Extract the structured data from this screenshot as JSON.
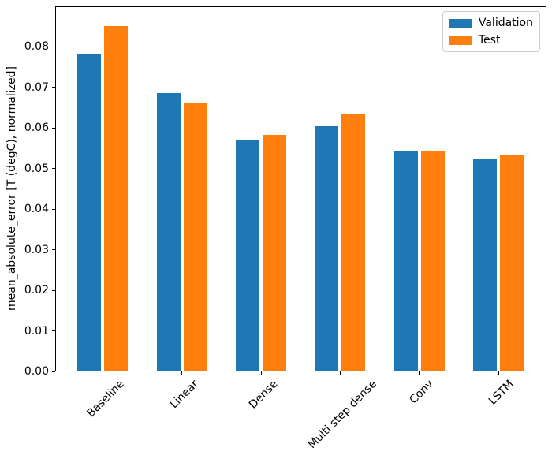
{
  "chart_data": {
    "type": "bar",
    "title": "",
    "categories": [
      "Baseline",
      "Linear",
      "Dense",
      "Multi step dense",
      "Conv",
      "LSTM"
    ],
    "series": [
      {
        "name": "Validation",
        "color": "#1f77b4",
        "values": [
          0.0785,
          0.0687,
          0.057,
          0.0606,
          0.0544,
          0.0523
        ]
      },
      {
        "name": "Test",
        "color": "#ff7f0e",
        "values": [
          0.0854,
          0.0664,
          0.0583,
          0.0634,
          0.0542,
          0.0533
        ]
      }
    ],
    "xlabel": "",
    "ylabel": "mean_absolute_error [T (degC), normalized]",
    "ylim": [
      0,
      0.09
    ],
    "ytick_labels": [
      "0.00",
      "0.01",
      "0.02",
      "0.03",
      "0.04",
      "0.05",
      "0.06",
      "0.07",
      "0.08"
    ],
    "x_tick_rotation_deg": 45,
    "grid": false,
    "legend": {
      "position": "upper right",
      "entries": [
        "Validation",
        "Test"
      ]
    },
    "colors": {
      "validation_bar": "#1f77b4",
      "test_bar": "#ff7f0e",
      "spine": "#000000",
      "background": "#ffffff",
      "legend_border": "#cccccc"
    }
  }
}
